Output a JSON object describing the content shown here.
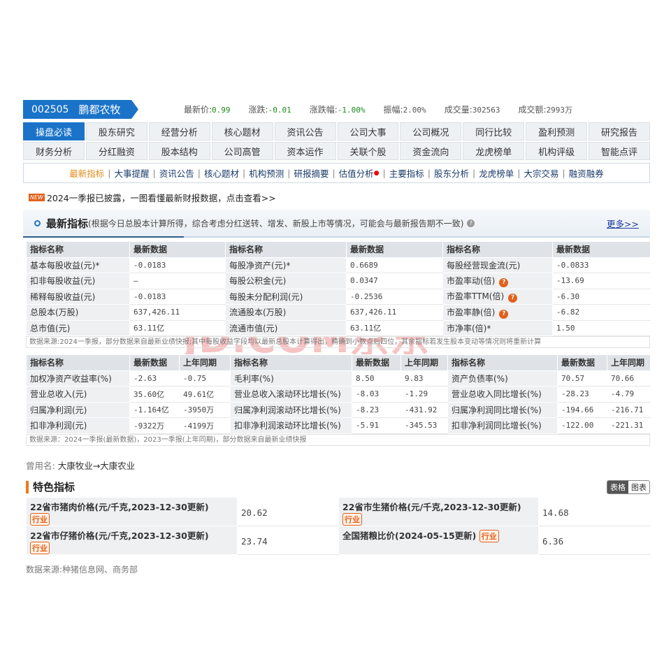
{
  "stock": {
    "code": "002505",
    "name": "鹏都农牧"
  },
  "quote": [
    {
      "k": "最新价:",
      "v": "0.99",
      "c": "green"
    },
    {
      "k": "涨跌:",
      "v": "-0.01",
      "c": "green"
    },
    {
      "k": "涨跌幅:",
      "v": "-1.00%",
      "c": "green"
    },
    {
      "k": "振幅:",
      "v": "2.00%",
      "c": ""
    },
    {
      "k": "成交量:",
      "v": "302563",
      "c": ""
    },
    {
      "k": "成交额:",
      "v": "2993万",
      "c": ""
    }
  ],
  "tabs": [
    "操盘必读",
    "股东研究",
    "经营分析",
    "核心题材",
    "资讯公告",
    "公司大事",
    "公司概况",
    "同行比较",
    "盈利预测",
    "研究报告",
    "财务分析",
    "分红融资",
    "股本结构",
    "公司高管",
    "资本运作",
    "关联个股",
    "资金流向",
    "龙虎榜单",
    "机构评级",
    "智能点评"
  ],
  "active_tab": "操盘必读",
  "subnav": [
    "最新指标",
    "大事提醒",
    "资讯公告",
    "核心题材",
    "机构预测",
    "研报摘要",
    "估值分析",
    "主要指标",
    "股东分析",
    "龙虎榜单",
    "大宗交易",
    "融资融券"
  ],
  "banner": {
    "badge": "NEW",
    "text": "2024一季报已披露，一图看懂最新财报数据，点击查看>>"
  },
  "section": {
    "title": "最新指标",
    "desc": "(根据今日总股本计算所得，综合考虑分红送转、增发、新股上市等情况，可能会与最新报告期不一致)",
    "more": "更多>>"
  },
  "table1": {
    "header": [
      "指标名称",
      "最新数据",
      "指标名称",
      "最新数据",
      "指标名称",
      "最新数据"
    ],
    "rows": [
      [
        "基本每股收益(元)*",
        "-0.0183",
        "每股净资产(元)*",
        "0.6689",
        "每股经营现金流(元)",
        "-0.0833"
      ],
      [
        "扣非每股收益(元)",
        "—",
        "每股公积金(元)",
        "0.0347",
        "市盈率动(倍)",
        "-13.69"
      ],
      [
        "稀释每股收益(元)",
        "-0.0183",
        "每股未分配利润(元)",
        "-0.2536",
        "市盈率TTM(倍)",
        "-6.30"
      ],
      [
        "总股本(万股)",
        "637,426.11",
        "流通股本(万股)",
        "637,426.11",
        "市盈率静(倍)",
        "-6.82"
      ],
      [
        "总市值(元)",
        "63.11亿",
        "流通市值(元)",
        "63.11亿",
        "市净率(倍)*",
        "1.50"
      ]
    ],
    "note": "数据来源:2024一季报，部分数据来自最新业绩快报;其中每股收益字段均以最新总股本计算得出，精确到小数点后四位，其余指标若发生股本变动等情况则将重新计算"
  },
  "table2": {
    "header": [
      "指标名称",
      "最新数据",
      "上年同期",
      "指标名称",
      "最新数据",
      "上年同期",
      "指标名称",
      "最新数据",
      "上年同期"
    ],
    "rows": [
      [
        "加权净资产收益率(%)",
        "-2.63",
        "-0.75",
        "毛利率(%)",
        "8.50",
        "9.83",
        "资产负债率(%)",
        "70.57",
        "70.66"
      ],
      [
        "营业总收入(元)",
        "35.60亿",
        "49.61亿",
        "营业总收入滚动环比增长(%)",
        "-8.03",
        "-1.29",
        "营业总收入同比增长(%)",
        "-28.23",
        "-4.79"
      ],
      [
        "归属净利润(元)",
        "-1.164亿",
        "-3950万",
        "归属净利润滚动环比增长(%)",
        "-8.23",
        "-431.92",
        "归属净利润同比增长(%)",
        "-194.66",
        "-216.71"
      ],
      [
        "扣非净利润(元)",
        "-9322万",
        "-4199万",
        "扣非净利润滚动环比增长(%)",
        "-5.91",
        "-345.53",
        "扣非净利润同比增长(%)",
        "-122.00",
        "-221.31"
      ]
    ],
    "note": "数据来源：2024一季报(最新数据)，2023一季报(上年同期)，部分数据来自最新业绩快报"
  },
  "former_name": {
    "label": "曾用名:",
    "value": "大康牧业→大康农业"
  },
  "featured": {
    "title": "特色指标",
    "toggle": [
      "表格",
      "图表"
    ],
    "tag": "行业",
    "rows": [
      [
        {
          "name": "22省市猪肉价格(元/千克,2023-12-30更新)",
          "value": "20.62"
        },
        {
          "name": "22省市生猪价格(元/千克,2023-12-30更新)",
          "value": "14.68"
        }
      ],
      [
        {
          "name": "22省市仔猪价格(元/千克,2023-12-30更新)",
          "value": "23.74"
        },
        {
          "name": "全国猪粮比价(2024-05-15更新)",
          "value": "6.36"
        }
      ]
    ],
    "source": "数据来源:种猪信息网、商务部"
  },
  "watermark": "JD.COM京东",
  "colors": {
    "brand": "#1a73c9",
    "accent": "#e2601a",
    "down": "#1a8a1a"
  }
}
